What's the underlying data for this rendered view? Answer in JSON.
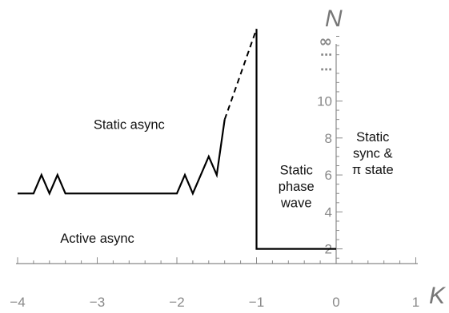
{
  "chart_data": {
    "type": "line",
    "xlabel": "K",
    "ylabel": "N",
    "xlim": [
      -4,
      1
    ],
    "ylim": [
      1.2,
      14
    ],
    "x_ticks": [
      -4,
      -3,
      -2,
      -1,
      0,
      1
    ],
    "x_tick_labels": [
      "−4",
      "−3",
      "−2",
      "−1",
      "0",
      "1"
    ],
    "y_ticks": [
      2,
      4,
      6,
      8,
      10
    ],
    "y_tick_labels": [
      "2",
      "4",
      "6",
      "8",
      "10"
    ],
    "y_extra_labels": {
      "dots_upper": "⋯",
      "dots_lower": "⋯",
      "infinity": "∞"
    },
    "y_extra_positions": {
      "dots_lower": 11.5,
      "dots_upper": 12.3,
      "infinity": 13.2
    },
    "series": [
      {
        "style": "solid",
        "points": [
          [
            -4.0,
            5
          ],
          [
            -3.8,
            5
          ],
          [
            -3.7,
            6
          ],
          [
            -3.6,
            5
          ],
          [
            -3.5,
            6
          ],
          [
            -3.4,
            5
          ],
          [
            -2.0,
            5
          ],
          [
            -1.9,
            6
          ],
          [
            -1.8,
            5
          ],
          [
            -1.6,
            7
          ],
          [
            -1.5,
            6
          ],
          [
            -1.4,
            9
          ]
        ]
      },
      {
        "style": "dashed",
        "points": [
          [
            -1.4,
            9
          ],
          [
            -1.0,
            13.9
          ]
        ]
      },
      {
        "style": "solid",
        "points": [
          [
            -1.0,
            13.9
          ],
          [
            -1.0,
            2
          ],
          [
            0.0,
            2
          ]
        ]
      }
    ],
    "annotations": [
      {
        "lines": [
          "Static async"
        ],
        "x": -2.6,
        "y": 8.75
      },
      {
        "lines": [
          "Active async"
        ],
        "x": -3.0,
        "y": 2.6
      },
      {
        "lines": [
          "Static",
          "phase",
          "wave"
        ],
        "x": -0.5,
        "y": 5.4
      },
      {
        "lines": [
          "Static",
          "sync &",
          "π state"
        ],
        "x": 0.46,
        "y": 7.2
      }
    ]
  }
}
